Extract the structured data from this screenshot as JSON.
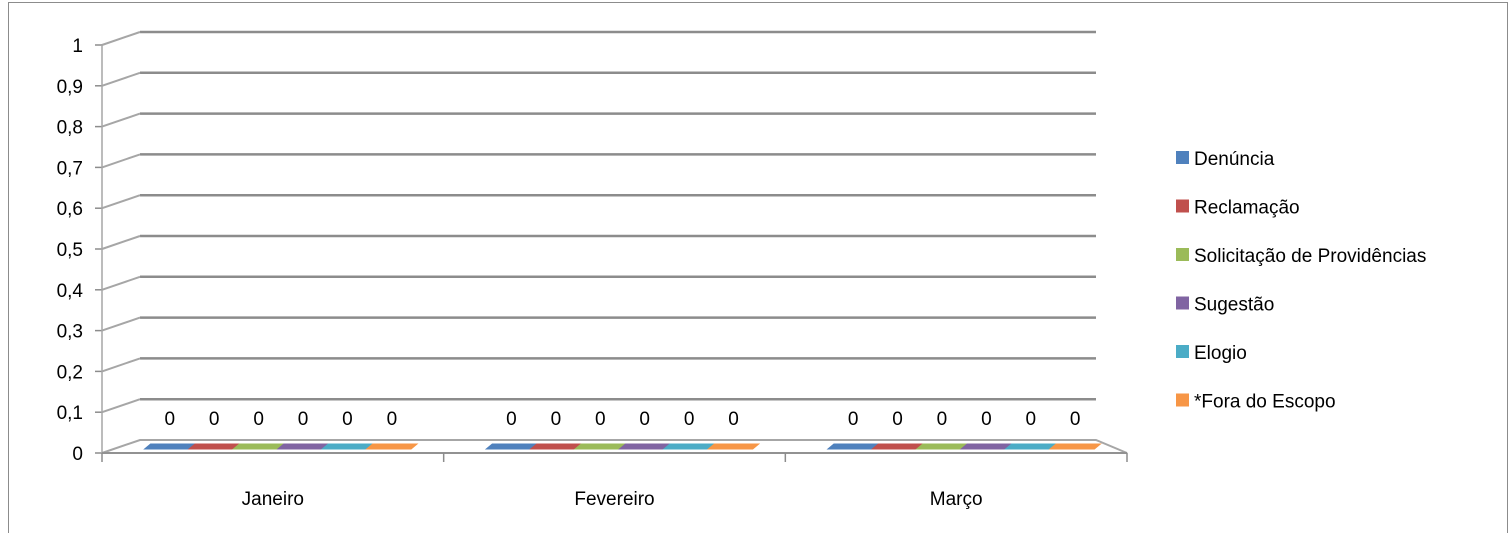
{
  "chart_data": {
    "type": "bar",
    "title": "",
    "xlabel": "",
    "ylabel": "",
    "ylim": [
      0,
      1
    ],
    "y_ticks": [
      "0",
      "0,1",
      "0,2",
      "0,3",
      "0,4",
      "0,5",
      "0,6",
      "0,7",
      "0,8",
      "0,9",
      "1"
    ],
    "categories": [
      "Janeiro",
      "Fevereiro",
      "Março"
    ],
    "series": [
      {
        "name": "Denúncia",
        "values": [
          0,
          0,
          0
        ],
        "color": "#4F81BD"
      },
      {
        "name": "Reclamação",
        "values": [
          0,
          0,
          0
        ],
        "color": "#C0504D"
      },
      {
        "name": "Solicitação de Providências",
        "values": [
          0,
          0,
          0
        ],
        "color": "#9BBB59"
      },
      {
        "name": "Sugestão",
        "values": [
          0,
          0,
          0
        ],
        "color": "#8064A2"
      },
      {
        "name": "Elogio",
        "values": [
          0,
          0,
          0
        ],
        "color": "#4BACC6"
      },
      {
        "name": "*Fora do Escopo",
        "values": [
          0,
          0,
          0
        ],
        "color": "#F79646"
      }
    ],
    "data_labels": true,
    "grid": true,
    "legend_position": "right",
    "style": "3d-clustered-column"
  }
}
